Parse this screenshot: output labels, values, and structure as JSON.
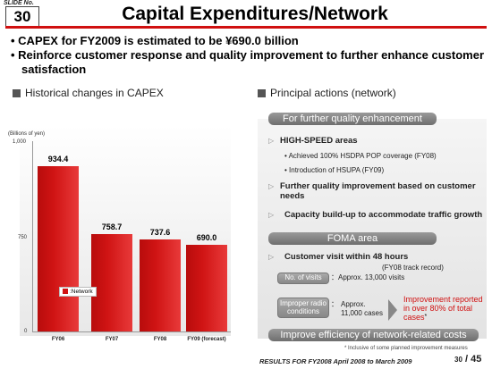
{
  "slide": {
    "label": "SLIDE No.",
    "number": "30"
  },
  "title": "Capital Expenditures/Network",
  "bullets": [
    "CAPEX for FY2009 is estimated to be ¥690.0 billion",
    "Reinforce customer response and quality improvement to further enhance customer satisfaction"
  ],
  "left_heading": "Historical changes in CAPEX",
  "right_heading": "Principal actions (network)",
  "chart_data": {
    "type": "bar",
    "ylabel": "(Billions of  yen)",
    "yticks": [
      "1,000",
      "750",
      "0"
    ],
    "categories": [
      "FY06",
      "FY07",
      "FY08",
      "FY09 (forecast)"
    ],
    "values": [
      934.4,
      758.7,
      737.6,
      690.0
    ],
    "value_labels": [
      "934.4",
      "758.7",
      "737.6",
      "690.0"
    ],
    "legend": ":Network",
    "color": "#d01414"
  },
  "right": {
    "banner1": "For further quality enhancement",
    "item1": "HIGH-SPEED areas",
    "item1_sub": [
      "Achieved 100% HSDPA POP coverage (FY08)",
      "Introduction of HSUPA (FY09)"
    ],
    "item2": "Further quality improvement  based on customer needs",
    "item3": "Capacity build-up to accommodate traffic growth",
    "banner2": "FOMA area",
    "item4": "Customer visit within 48 hours",
    "item4_note": "(FY08 track record)",
    "visits_btn": "No. of visits",
    "visits_val": "：Approx. 13,000 visits",
    "radio_btn": "Improper radio conditions",
    "radio_val_colon": "：",
    "radio_val1": "Approx.",
    "radio_val2": "11,000 cases",
    "improvement": "Improvement reported in over 80% of total cases",
    "asterisk": "*",
    "banner3": "Improve efficiency of network-related costs",
    "footnote": "* Inclusive of some planned improvement measures"
  },
  "footer": {
    "text": "RESULTS FOR FY2008  April 2008 to March 2009",
    "page": "30",
    "total": "/ 45"
  }
}
